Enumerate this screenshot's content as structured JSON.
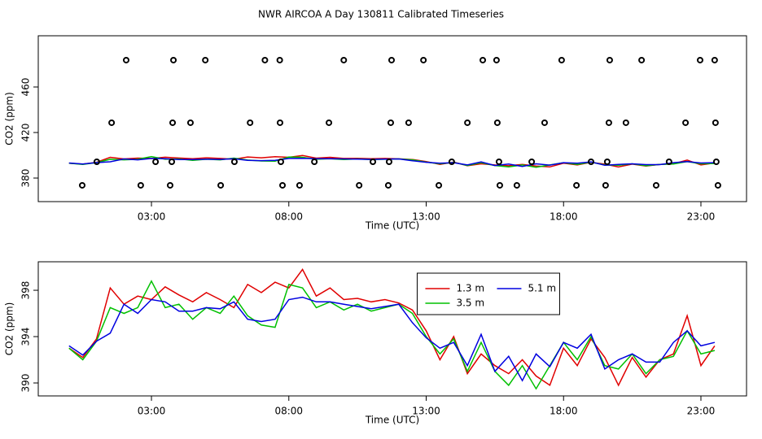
{
  "title": "NWR AIRCOA A  Day 130811  Calibrated Timeseries",
  "chart_data": [
    {
      "type": "line",
      "ylabel": "CO2 (ppm)",
      "xlabel": "Time (UTC)",
      "xlim": [
        -1.12,
        24.66
      ],
      "ylim": [
        359.3,
        505
      ],
      "xticks": [
        {
          "value": 3,
          "label": "03:00"
        },
        {
          "value": 8,
          "label": "08:00"
        },
        {
          "value": 13,
          "label": "13:00"
        },
        {
          "value": 18,
          "label": "18:00"
        },
        {
          "value": 23,
          "label": "23:00"
        }
      ],
      "yticks": [
        380,
        420,
        460
      ],
      "x": [
        0,
        0.5,
        1,
        1.5,
        2,
        2.5,
        3,
        3.5,
        4,
        4.5,
        5,
        5.5,
        6,
        6.5,
        7,
        7.5,
        8,
        8.5,
        9,
        9.5,
        10,
        10.5,
        11,
        11.5,
        12,
        12.5,
        13,
        13.5,
        14,
        14.5,
        15,
        15.5,
        16,
        16.5,
        17,
        17.5,
        18,
        18.5,
        19,
        19.5,
        20,
        20.5,
        21,
        21.5,
        22,
        22.5,
        23,
        23.5
      ],
      "series": [
        {
          "color": "#e00000",
          "values": [
            393.0,
            392.2,
            393.8,
            398.2,
            396.8,
            397.5,
            397.2,
            398.3,
            397.6,
            397.0,
            397.8,
            397.2,
            396.5,
            398.5,
            397.8,
            398.7,
            398.2,
            399.8,
            397.5,
            398.2,
            397.2,
            397.3,
            397.0,
            397.2,
            396.9,
            396.3,
            394.5,
            392.0,
            394.0,
            390.8,
            392.5,
            391.5,
            390.8,
            392.0,
            390.6,
            389.8,
            393.0,
            391.5,
            393.8,
            392.2,
            389.8,
            392.2,
            390.5,
            392.0,
            392.5,
            395.8,
            391.5,
            393.2
          ]
        },
        {
          "color": "#00c000",
          "values": [
            393.0,
            392.0,
            393.6,
            396.5,
            396.0,
            396.5,
            398.8,
            396.5,
            396.8,
            395.5,
            396.5,
            396.0,
            397.5,
            395.8,
            395.0,
            394.8,
            398.5,
            398.2,
            396.5,
            397.0,
            396.3,
            396.8,
            396.2,
            396.5,
            396.8,
            396.0,
            394.0,
            392.5,
            393.8,
            391.0,
            393.5,
            391.0,
            389.8,
            391.5,
            389.5,
            391.5,
            393.5,
            392.0,
            394.0,
            391.5,
            391.2,
            392.5,
            390.8,
            392.0,
            392.3,
            394.5,
            392.5,
            392.8
          ]
        },
        {
          "color": "#0000e0",
          "values": [
            393.2,
            392.4,
            393.6,
            394.3,
            396.8,
            396.0,
            397.2,
            397.0,
            396.2,
            396.2,
            396.5,
            396.4,
            397.0,
            395.5,
            395.3,
            395.5,
            397.2,
            397.4,
            397.0,
            397.0,
            396.8,
            396.6,
            396.4,
            396.6,
            396.8,
            395.2,
            393.9,
            393.0,
            393.5,
            391.5,
            394.2,
            391.0,
            392.3,
            390.2,
            392.5,
            391.4,
            393.5,
            393.0,
            394.2,
            391.2,
            392.0,
            392.5,
            391.8,
            391.8,
            393.5,
            394.5,
            393.2,
            393.5
          ]
        }
      ],
      "points": {
        "color": "#000000",
        "x": [
          2.08,
          3.8,
          4.96,
          7.13,
          7.67,
          10.0,
          11.74,
          12.9,
          15.06,
          15.56,
          17.93,
          19.68,
          20.84,
          22.97,
          23.5,
          1.55,
          3.77,
          4.42,
          6.59,
          7.68,
          9.46,
          11.71,
          12.36,
          14.5,
          15.59,
          17.31,
          19.65,
          20.27,
          22.44,
          23.53,
          1.01,
          3.15,
          3.74,
          6.02,
          7.71,
          8.93,
          11.06,
          11.65,
          13.93,
          15.65,
          16.84,
          19.0,
          19.59,
          21.84,
          23.56,
          0.48,
          2.61,
          3.68,
          5.52,
          7.77,
          8.39,
          10.56,
          11.62,
          13.46,
          15.68,
          16.3,
          18.47,
          19.53,
          21.37,
          23.62
        ],
        "y": [
          483.6,
          483.6,
          483.6,
          483.6,
          483.6,
          483.6,
          483.6,
          483.6,
          483.6,
          483.6,
          483.6,
          483.6,
          483.6,
          483.6,
          483.6,
          428.6,
          428.6,
          428.6,
          428.6,
          428.6,
          428.6,
          428.6,
          428.6,
          428.6,
          428.6,
          428.6,
          428.6,
          428.6,
          428.6,
          428.6,
          394.3,
          394.3,
          394.3,
          394.3,
          394.3,
          394.3,
          394.3,
          394.3,
          394.3,
          394.3,
          394.3,
          394.3,
          394.3,
          394.3,
          394.3,
          373.6,
          373.6,
          373.6,
          373.6,
          373.6,
          373.6,
          373.6,
          373.6,
          373.6,
          373.6,
          373.6,
          373.6,
          373.6,
          373.6,
          373.6
        ]
      }
    },
    {
      "type": "line",
      "ylabel": "CO2 (ppm)",
      "xlabel": "Time (UTC)",
      "xlim": [
        -1.12,
        24.66
      ],
      "ylim": [
        388.88,
        400.46
      ],
      "xticks": [
        {
          "value": 3,
          "label": "03:00"
        },
        {
          "value": 8,
          "label": "08:00"
        },
        {
          "value": 13,
          "label": "13:00"
        },
        {
          "value": 18,
          "label": "18:00"
        },
        {
          "value": 23,
          "label": "23:00"
        }
      ],
      "yticks": [
        390,
        394,
        398
      ],
      "legend": "top-center",
      "x": [
        0,
        0.5,
        1,
        1.5,
        2,
        2.5,
        3,
        3.5,
        4,
        4.5,
        5,
        5.5,
        6,
        6.5,
        7,
        7.5,
        8,
        8.5,
        9,
        9.5,
        10,
        10.5,
        11,
        11.5,
        12,
        12.5,
        13,
        13.5,
        14,
        14.5,
        15,
        15.5,
        16,
        16.5,
        17,
        17.5,
        18,
        18.5,
        19,
        19.5,
        20,
        20.5,
        21,
        21.5,
        22,
        22.5,
        23,
        23.5
      ],
      "series": [
        {
          "name": "1.3 m",
          "color": "#e00000",
          "values": [
            393.0,
            392.2,
            393.8,
            398.2,
            396.8,
            397.5,
            397.2,
            398.3,
            397.6,
            397.0,
            397.8,
            397.2,
            396.5,
            398.5,
            397.8,
            398.7,
            398.2,
            399.8,
            397.5,
            398.2,
            397.2,
            397.3,
            397.0,
            397.2,
            396.9,
            396.3,
            394.5,
            392.0,
            394.0,
            390.8,
            392.5,
            391.5,
            390.8,
            392.0,
            390.6,
            389.8,
            393.0,
            391.5,
            393.8,
            392.2,
            389.8,
            392.2,
            390.5,
            392.0,
            392.5,
            395.8,
            391.5,
            393.2
          ]
        },
        {
          "name": "3.5 m",
          "color": "#00c000",
          "values": [
            393.0,
            392.0,
            393.6,
            396.5,
            396.0,
            396.5,
            398.8,
            396.5,
            396.8,
            395.5,
            396.5,
            396.0,
            397.5,
            395.8,
            395.0,
            394.8,
            398.5,
            398.2,
            396.5,
            397.0,
            396.3,
            396.8,
            396.2,
            396.5,
            396.8,
            396.0,
            394.0,
            392.5,
            393.8,
            391.0,
            393.5,
            391.0,
            389.8,
            391.5,
            389.5,
            391.5,
            393.5,
            392.0,
            394.0,
            391.5,
            391.2,
            392.5,
            390.8,
            392.0,
            392.3,
            394.5,
            392.5,
            392.8
          ]
        },
        {
          "name": "5.1 m",
          "color": "#0000e0",
          "values": [
            393.2,
            392.4,
            393.6,
            394.3,
            396.8,
            396.0,
            397.2,
            397.0,
            396.2,
            396.2,
            396.5,
            396.4,
            397.0,
            395.5,
            395.3,
            395.5,
            397.2,
            397.4,
            397.0,
            397.0,
            396.8,
            396.6,
            396.4,
            396.6,
            396.8,
            395.2,
            393.9,
            393.0,
            393.5,
            391.5,
            394.2,
            391.0,
            392.3,
            390.2,
            392.5,
            391.4,
            393.5,
            393.0,
            394.2,
            391.2,
            392.0,
            392.5,
            391.8,
            391.8,
            393.5,
            394.5,
            393.2,
            393.5
          ]
        }
      ]
    }
  ]
}
